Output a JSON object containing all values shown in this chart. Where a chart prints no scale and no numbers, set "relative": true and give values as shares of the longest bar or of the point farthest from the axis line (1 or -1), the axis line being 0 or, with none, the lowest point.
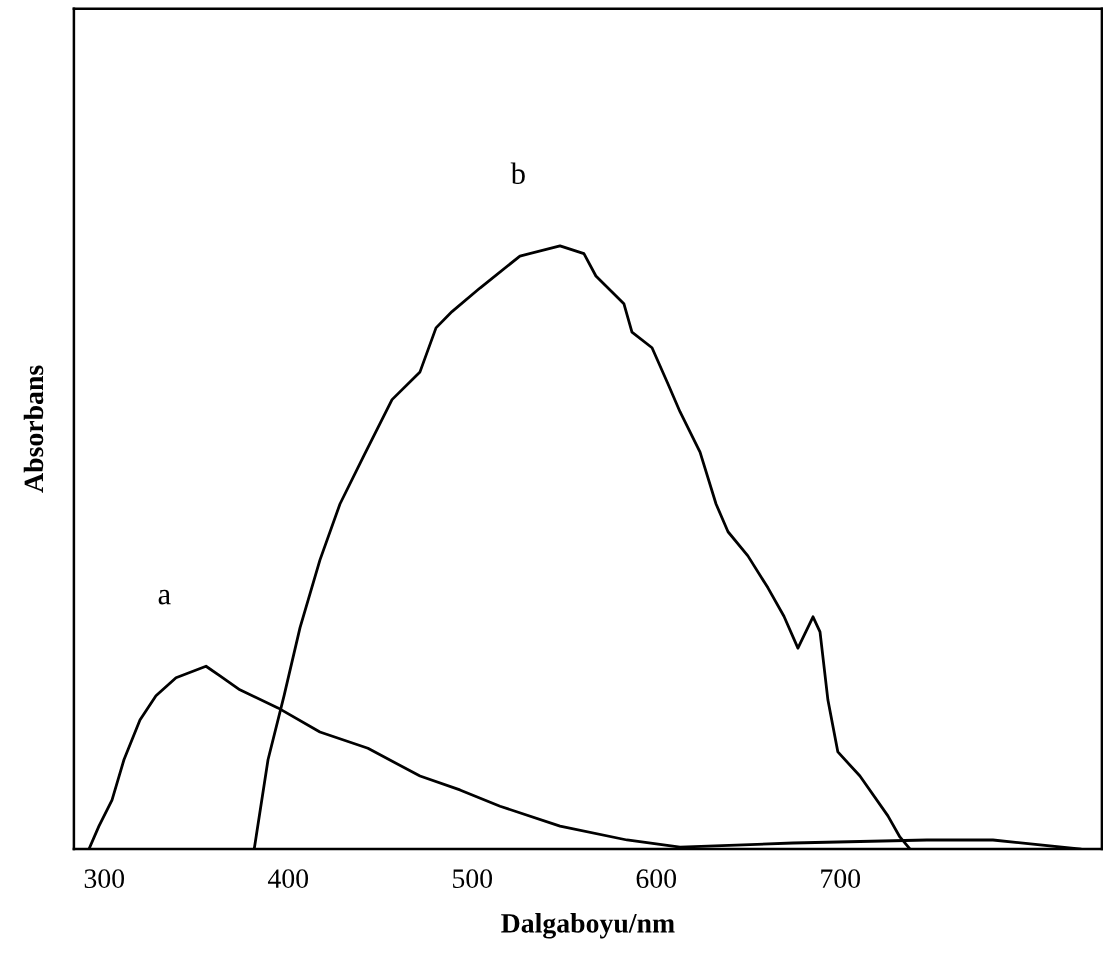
{
  "chart_data": {
    "type": "line",
    "xlabel": "Dalgaboyu/nm",
    "ylabel": "Absorbans",
    "relative": true,
    "xlim": [
      283.5,
      842.2
    ],
    "xticks": [
      300,
      400,
      500,
      600,
      700
    ],
    "grid": false,
    "marker": "none",
    "line_style": "solid",
    "series": [
      {
        "name": "a",
        "color": "#000000",
        "x": [
          291.7,
          297.1,
          304.2,
          310.7,
          319.4,
          328.1,
          339.0,
          355.3,
          362.9,
          373.7,
          394.4,
          417.2,
          443.3,
          471.6,
          493.3,
          515.1,
          547.7,
          584.1,
          612.9,
          674.3,
          747.1,
          783.0,
          830.3
        ],
        "values": [
          0,
          0.038,
          0.081,
          0.148,
          0.214,
          0.254,
          0.284,
          0.303,
          0.287,
          0.264,
          0.234,
          0.194,
          0.167,
          0.121,
          0.098,
          0.071,
          0.038,
          0.015,
          0.003,
          0.01,
          0.015,
          0.015,
          0
        ]
      },
      {
        "name": "b",
        "color": "#000000",
        "x": [
          381.5,
          389.0,
          397.7,
          406.4,
          417.2,
          428.1,
          441.1,
          456.4,
          471.6,
          480.3,
          489.0,
          504.2,
          525.9,
          547.7,
          560.7,
          567.2,
          582.4,
          586.8,
          597.7,
          606.4,
          612.9,
          623.8,
          632.5,
          639.0,
          649.8,
          660.7,
          669.4,
          677.0,
          685.2,
          689.0,
          693.3,
          698.7,
          710.7,
          725.9,
          732.4,
          737.9
        ],
        "values": [
          0,
          0.148,
          0.254,
          0.367,
          0.479,
          0.572,
          0.652,
          0.745,
          0.791,
          0.864,
          0.891,
          0.93,
          0.983,
          1.0,
          0.987,
          0.95,
          0.904,
          0.857,
          0.831,
          0.771,
          0.725,
          0.658,
          0.572,
          0.526,
          0.486,
          0.433,
          0.386,
          0.333,
          0.385,
          0.36,
          0.247,
          0.161,
          0.121,
          0.055,
          0.02,
          0
        ]
      }
    ]
  }
}
